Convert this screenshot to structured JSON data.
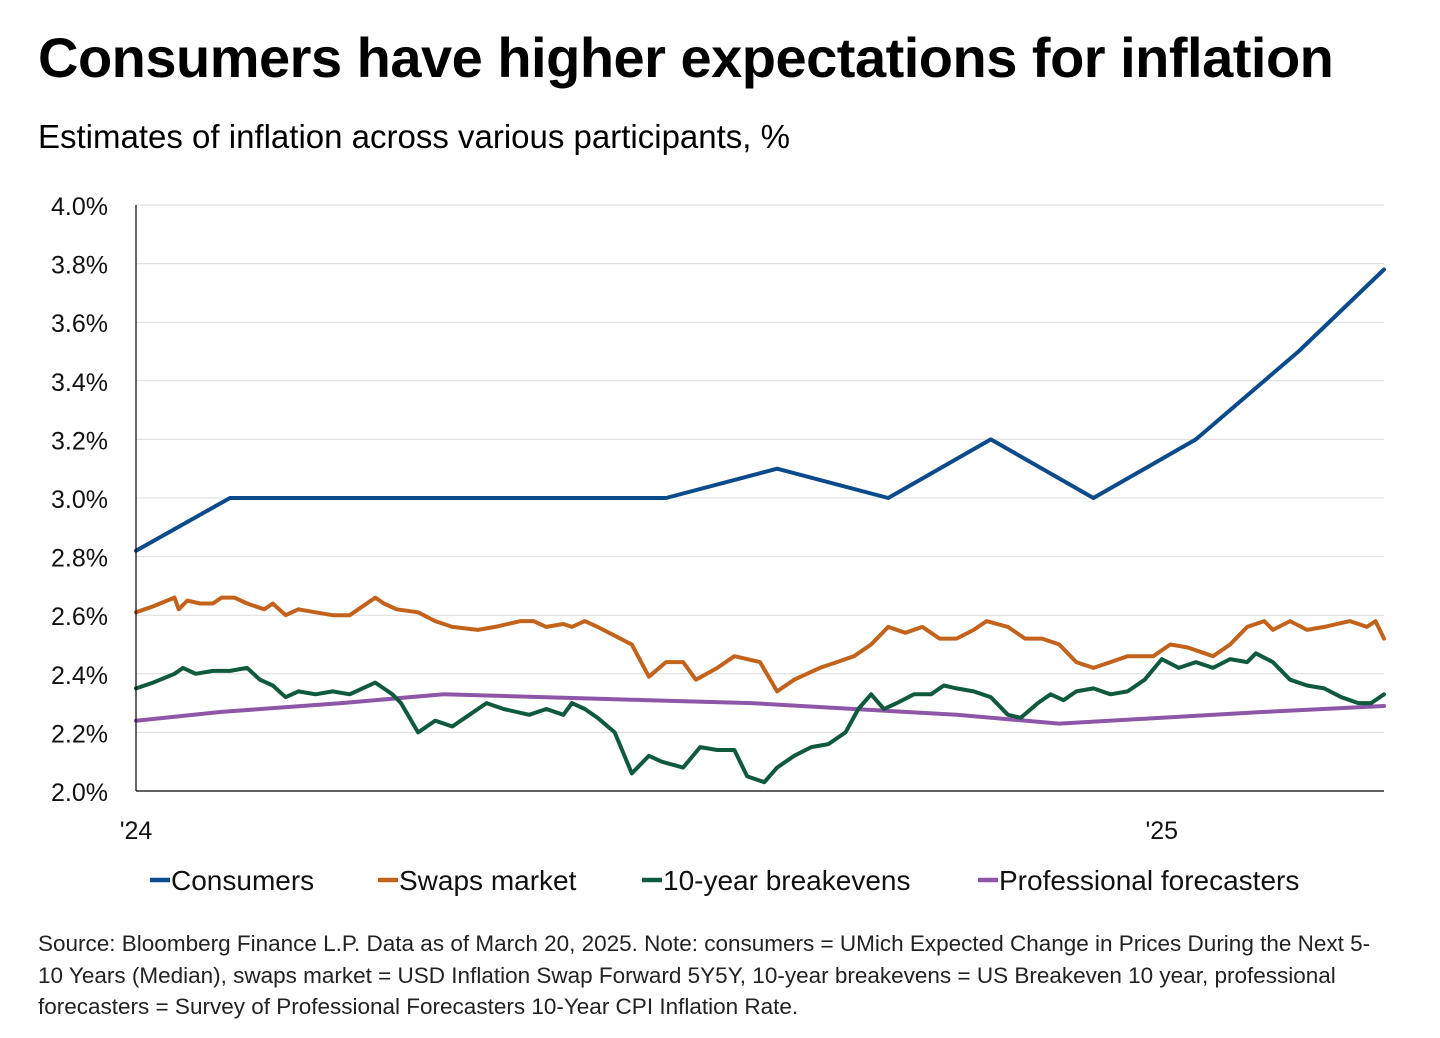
{
  "title": "Consumers have higher expectations for inflation",
  "subtitle": "Estimates of inflation across various participants, %",
  "source_note": "Source: Bloomberg Finance L.P. Data as of March 20, 2025. Note: consumers = UMich Expected Change in Prices During the Next 5-10 Years (Median), swaps market = USD Inflation Swap Forward 5Y5Y, 10-year breakevens = US Breakeven 10 year, professional forecasters = Survey of Professional Forecasters 10-Year CPI Inflation Rate.",
  "chart_data": {
    "type": "line",
    "title": "Consumers have higher expectations for inflation",
    "subtitle": "Estimates of inflation across various participants, %",
    "xlabel": "",
    "ylabel": "%",
    "x_unit": "months since Jan 2024",
    "xlim": [
      0,
      14.6
    ],
    "ylim": [
      2.0,
      4.0
    ],
    "grid": true,
    "legend": "bottom",
    "x_ticks": [
      {
        "x": 0,
        "label": "'24"
      },
      {
        "x": 12,
        "label": "'25"
      }
    ],
    "y_ticks": [
      {
        "y": 2.0,
        "label": "2.0%"
      },
      {
        "y": 2.2,
        "label": "2.2%"
      },
      {
        "y": 2.4,
        "label": "2.4%"
      },
      {
        "y": 2.6,
        "label": "2.6%"
      },
      {
        "y": 2.8,
        "label": "2.8%"
      },
      {
        "y": 3.0,
        "label": "3.0%"
      },
      {
        "y": 3.2,
        "label": "3.2%"
      },
      {
        "y": 3.4,
        "label": "3.4%"
      },
      {
        "y": 3.6,
        "label": "3.6%"
      },
      {
        "y": 3.8,
        "label": "3.8%"
      },
      {
        "y": 4.0,
        "label": "4.0%"
      }
    ],
    "series": [
      {
        "name": "Consumers",
        "color": "#0b4a8b",
        "x": [
          0,
          1.1,
          2.3,
          3.6,
          4.9,
          6.2,
          7.5,
          8.8,
          10.0,
          11.2,
          12.4,
          13.6,
          14.6
        ],
        "y": [
          2.82,
          3.0,
          3.0,
          3.0,
          3.0,
          3.0,
          3.1,
          3.0,
          3.2,
          3.0,
          3.2,
          3.5,
          3.78
        ]
      },
      {
        "name": "Swaps market",
        "color": "#c2621b",
        "x": [
          0,
          0.2,
          0.45,
          0.5,
          0.6,
          0.75,
          0.9,
          1.0,
          1.15,
          1.3,
          1.5,
          1.6,
          1.75,
          1.9,
          2.1,
          2.3,
          2.5,
          2.8,
          2.9,
          3.05,
          3.3,
          3.5,
          3.7,
          4.0,
          4.2,
          4.5,
          4.65,
          4.8,
          5.0,
          5.1,
          5.25,
          5.4,
          5.6,
          5.8,
          6.0,
          6.2,
          6.4,
          6.55,
          6.8,
          7.0,
          7.3,
          7.5,
          7.7,
          8.0,
          8.2,
          8.4,
          8.6,
          8.8,
          9.0,
          9.2,
          9.4,
          9.6,
          9.8,
          9.95,
          10.2,
          10.4,
          10.6,
          10.8,
          11.0,
          11.2,
          11.4,
          11.6,
          11.9,
          12.1,
          12.3,
          12.6,
          12.8,
          13.0,
          13.2,
          13.3,
          13.5,
          13.7,
          13.9,
          14.2,
          14.4,
          14.5,
          14.6
        ],
        "y": [
          2.61,
          2.63,
          2.66,
          2.62,
          2.65,
          2.64,
          2.64,
          2.66,
          2.66,
          2.64,
          2.62,
          2.64,
          2.6,
          2.62,
          2.61,
          2.6,
          2.6,
          2.66,
          2.64,
          2.62,
          2.61,
          2.58,
          2.56,
          2.55,
          2.56,
          2.58,
          2.58,
          2.56,
          2.57,
          2.56,
          2.58,
          2.56,
          2.53,
          2.5,
          2.39,
          2.44,
          2.44,
          2.38,
          2.42,
          2.46,
          2.44,
          2.34,
          2.38,
          2.42,
          2.44,
          2.46,
          2.5,
          2.56,
          2.54,
          2.56,
          2.52,
          2.52,
          2.55,
          2.58,
          2.56,
          2.52,
          2.52,
          2.5,
          2.44,
          2.42,
          2.44,
          2.46,
          2.46,
          2.5,
          2.49,
          2.46,
          2.5,
          2.56,
          2.58,
          2.55,
          2.58,
          2.55,
          2.56,
          2.58,
          2.56,
          2.58,
          2.52
        ]
      },
      {
        "name": "10-year breakevens",
        "color": "#0f5a3c",
        "x": [
          0,
          0.2,
          0.45,
          0.55,
          0.7,
          0.9,
          1.1,
          1.3,
          1.45,
          1.6,
          1.75,
          1.9,
          2.1,
          2.3,
          2.5,
          2.8,
          3.0,
          3.1,
          3.3,
          3.5,
          3.7,
          3.9,
          4.1,
          4.3,
          4.6,
          4.8,
          5.0,
          5.1,
          5.25,
          5.4,
          5.6,
          5.8,
          6.0,
          6.15,
          6.4,
          6.6,
          6.8,
          7.0,
          7.15,
          7.35,
          7.5,
          7.7,
          7.9,
          8.1,
          8.3,
          8.45,
          8.6,
          8.75,
          8.9,
          9.1,
          9.3,
          9.45,
          9.6,
          9.8,
          10.0,
          10.2,
          10.35,
          10.55,
          10.7,
          10.85,
          11.0,
          11.2,
          11.4,
          11.6,
          11.8,
          12.0,
          12.2,
          12.4,
          12.6,
          12.8,
          13.0,
          13.1,
          13.3,
          13.5,
          13.7,
          13.9,
          14.1,
          14.3,
          14.45,
          14.6
        ],
        "y": [
          2.35,
          2.37,
          2.4,
          2.42,
          2.4,
          2.41,
          2.41,
          2.42,
          2.38,
          2.36,
          2.32,
          2.34,
          2.33,
          2.34,
          2.33,
          2.37,
          2.33,
          2.3,
          2.2,
          2.24,
          2.22,
          2.26,
          2.3,
          2.28,
          2.26,
          2.28,
          2.26,
          2.3,
          2.28,
          2.25,
          2.2,
          2.06,
          2.12,
          2.1,
          2.08,
          2.15,
          2.14,
          2.14,
          2.05,
          2.03,
          2.08,
          2.12,
          2.15,
          2.16,
          2.2,
          2.28,
          2.33,
          2.28,
          2.3,
          2.33,
          2.33,
          2.36,
          2.35,
          2.34,
          2.32,
          2.26,
          2.25,
          2.3,
          2.33,
          2.31,
          2.34,
          2.35,
          2.33,
          2.34,
          2.38,
          2.45,
          2.42,
          2.44,
          2.42,
          2.45,
          2.44,
          2.47,
          2.44,
          2.38,
          2.36,
          2.35,
          2.32,
          2.3,
          2.3,
          2.33
        ]
      },
      {
        "name": "Professional forecasters",
        "color": "#8e56a8",
        "x": [
          0,
          1.0,
          2.4,
          3.6,
          4.8,
          6.0,
          7.2,
          8.4,
          9.6,
          10.8,
          12.0,
          13.2,
          14.6
        ],
        "y": [
          2.24,
          2.27,
          2.3,
          2.33,
          2.32,
          2.31,
          2.3,
          2.28,
          2.26,
          2.23,
          2.25,
          2.27,
          2.29
        ]
      }
    ]
  }
}
